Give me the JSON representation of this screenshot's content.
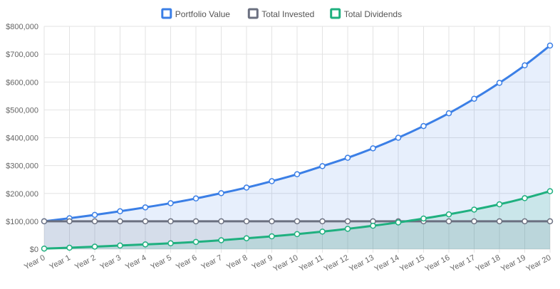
{
  "colors": {
    "portfolio": "#3b7fe6",
    "invested": "#6b7080",
    "dividends": "#1fb07f",
    "portfolio_fill": "rgba(59,127,230,0.12)",
    "invested_fill": "rgba(107,112,128,0.14)",
    "dividends_fill": "rgba(31,176,127,0.14)",
    "grid": "#e3e3e3",
    "tick_text": "#666666"
  },
  "chart_data": {
    "type": "line",
    "categories": [
      "Year 0",
      "Year 1",
      "Year 2",
      "Year 3",
      "Year 4",
      "Year 5",
      "Year 6",
      "Year 7",
      "Year 8",
      "Year 9",
      "Year 10",
      "Year 11",
      "Year 12",
      "Year 13",
      "Year 14",
      "Year 15",
      "Year 16",
      "Year 17",
      "Year 18",
      "Year 19",
      "Year 20"
    ],
    "series": [
      {
        "name": "Portfolio Value",
        "color_key": "portfolio",
        "fill_key": "portfolio_fill",
        "values": [
          100000,
          111000,
          123000,
          136000,
          150000,
          165000,
          182000,
          201000,
          221000,
          244000,
          269000,
          298000,
          328000,
          362000,
          400000,
          442000,
          488000,
          540000,
          597000,
          660000,
          731000
        ]
      },
      {
        "name": "Total Invested",
        "color_key": "invested",
        "fill_key": "invested_fill",
        "values": [
          100000,
          100000,
          100000,
          100000,
          100000,
          100000,
          100000,
          100000,
          100000,
          100000,
          100000,
          100000,
          100000,
          100000,
          100000,
          100000,
          100000,
          100000,
          100000,
          100000,
          100000
        ]
      },
      {
        "name": "Total Dividends",
        "color_key": "dividends",
        "fill_key": "dividends_fill",
        "values": [
          2000,
          5000,
          9000,
          13000,
          17000,
          21000,
          26000,
          32000,
          39000,
          46000,
          54000,
          63000,
          73000,
          84000,
          96000,
          110000,
          125000,
          142000,
          161000,
          183000,
          208000
        ]
      }
    ],
    "yticks": [
      0,
      100000,
      200000,
      300000,
      400000,
      500000,
      600000,
      700000,
      800000
    ],
    "ytick_labels": [
      "$0",
      "$100,000",
      "$200,000",
      "$300,000",
      "$400,000",
      "$500,000",
      "$600,000",
      "$700,000",
      "$800,000"
    ],
    "ylim": [
      0,
      800000
    ],
    "grid": true,
    "legend_position": "top-center",
    "xlabel": "",
    "ylabel": "",
    "title": ""
  }
}
